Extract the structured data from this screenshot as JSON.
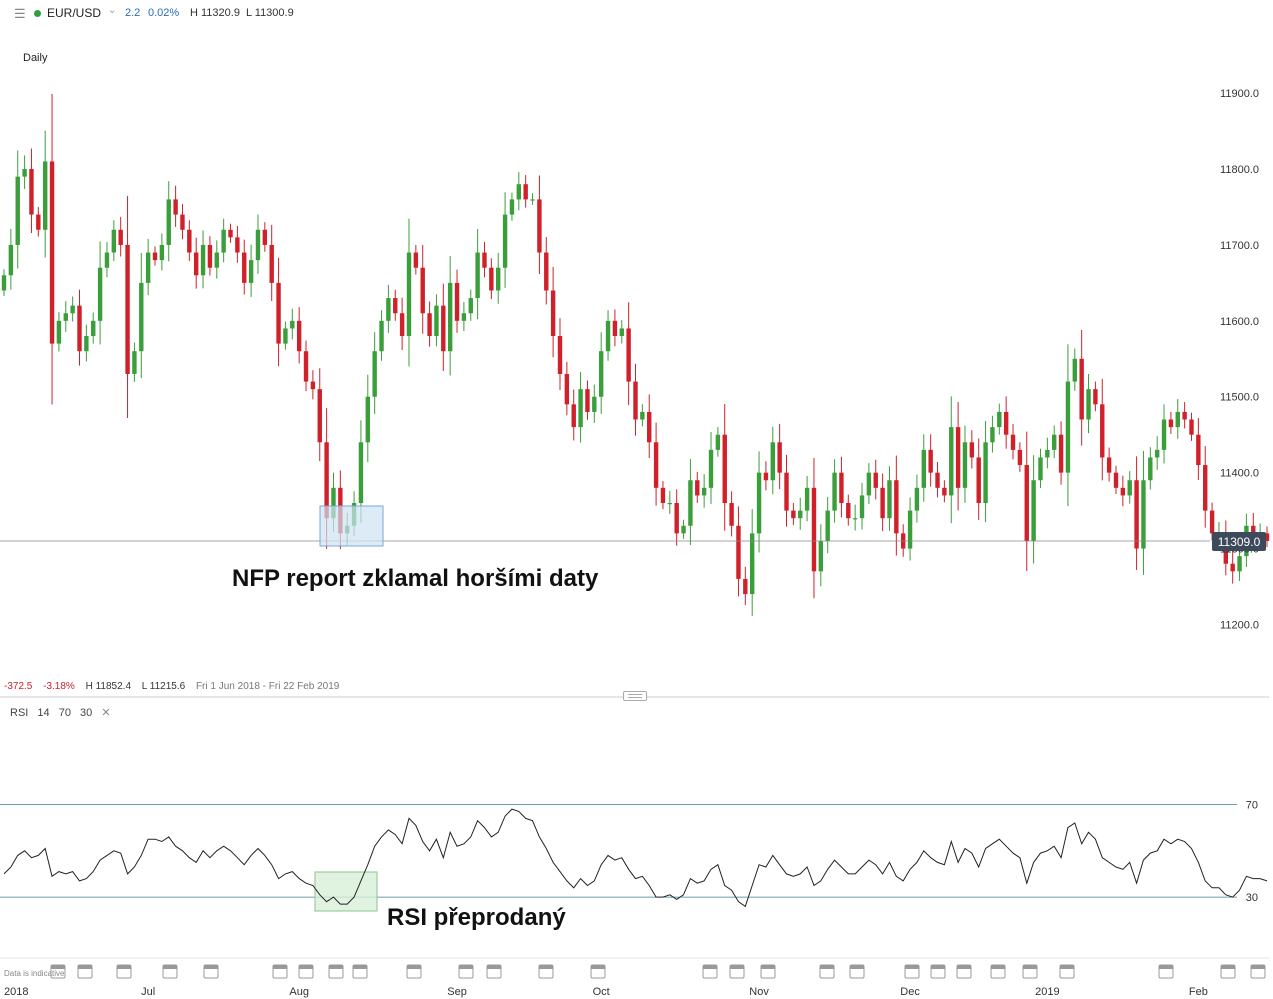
{
  "header": {
    "menu_icon": "hamburger-menu-icon",
    "symbol": "EUR/USD",
    "status_color": "#2e9e3e",
    "change": "2.2",
    "change_pct": "0.02%",
    "high": "H 11320.9",
    "low": "L 11300.9"
  },
  "timeframe": "Daily",
  "summary": {
    "change": "-372.5",
    "change_pct": "-3.18%",
    "high": "H 11852.4",
    "low": "L 11215.6",
    "range": "Fri 1 Jun 2018 - Fri 22 Feb 2019"
  },
  "rsi_header": {
    "name": "RSI",
    "period": "14",
    "upper": "70",
    "lower": "30",
    "close": "✕"
  },
  "disclaimer": "Data is indicative",
  "annotations": {
    "nfp": "NFP report zklamal horšími daty",
    "rsi": "RSI přeprodaný"
  },
  "colors": {
    "up": "#3a9e3a",
    "down": "#d0202a",
    "axis_text": "#333333",
    "rsi_line": "#222222",
    "level_line": "#3a7c8c",
    "last_price_bg": "#3c4a5c"
  },
  "chart_data": [
    {
      "type": "candlestick",
      "title": "EUR/USD Daily",
      "ylim": [
        11140,
        11970
      ],
      "yticks": [
        11200,
        11300,
        11400,
        11500,
        11600,
        11700,
        11800,
        11900
      ],
      "ytick_labels": [
        "11200.0",
        "11300.0",
        "11400.0",
        "11500.0",
        "11600.0",
        "11700.0",
        "11800.0",
        "11900.0"
      ],
      "last_price": 11309.0,
      "last_price_label": "11309.0",
      "x_labels": [
        "2018",
        "Jul",
        "Aug",
        "Sep",
        "Oct",
        "Nov",
        "Dec",
        "2019",
        "Feb"
      ],
      "x_label_index": [
        0,
        21,
        43,
        66,
        87,
        110,
        132,
        152,
        174
      ],
      "closes": [
        11660,
        11700,
        11790,
        11800,
        11740,
        11720,
        11810,
        11570,
        11600,
        11610,
        11620,
        11560,
        11580,
        11600,
        11670,
        11690,
        11720,
        11700,
        11530,
        11560,
        11650,
        11690,
        11680,
        11700,
        11760,
        11740,
        11720,
        11690,
        11660,
        11700,
        11670,
        11690,
        11720,
        11710,
        11690,
        11650,
        11680,
        11720,
        11700,
        11650,
        11570,
        11590,
        11600,
        11560,
        11520,
        11510,
        11440,
        11340,
        11380,
        11320,
        11330,
        11360,
        11440,
        11500,
        11560,
        11600,
        11630,
        11610,
        11580,
        11690,
        11670,
        11610,
        11580,
        11620,
        11560,
        11650,
        11600,
        11610,
        11630,
        11690,
        11670,
        11640,
        11670,
        11740,
        11760,
        11780,
        11760,
        11760,
        11690,
        11640,
        11580,
        11530,
        11490,
        11460,
        11510,
        11480,
        11500,
        11560,
        11600,
        11580,
        11590,
        11520,
        11470,
        11480,
        11440,
        11380,
        11360,
        11360,
        11320,
        11330,
        11390,
        11370,
        11380,
        11430,
        11450,
        11360,
        11330,
        11260,
        11240,
        11320,
        11400,
        11390,
        11440,
        11400,
        11350,
        11340,
        11350,
        11380,
        11270,
        11310,
        11350,
        11400,
        11360,
        11340,
        11340,
        11370,
        11400,
        11380,
        11340,
        11390,
        11320,
        11300,
        11350,
        11380,
        11430,
        11400,
        11380,
        11370,
        11460,
        11380,
        11440,
        11420,
        11360,
        11440,
        11460,
        11480,
        11450,
        11430,
        11410,
        11310,
        11390,
        11420,
        11430,
        11450,
        11400,
        11520,
        11550,
        11470,
        11510,
        11490,
        11420,
        11400,
        11380,
        11370,
        11390,
        11300,
        11390,
        11420,
        11430,
        11470,
        11460,
        11480,
        11470,
        11450,
        11410,
        11350,
        11320,
        11320,
        11280,
        11270,
        11290,
        11330,
        11320,
        11320,
        11310
      ]
    },
    {
      "type": "line",
      "title": "RSI 14",
      "ylim": [
        5,
        100
      ],
      "levels": [
        70,
        30
      ],
      "level_labels": [
        "70",
        "30"
      ],
      "values": [
        40,
        43,
        48,
        50,
        47,
        48,
        51,
        39,
        41,
        40,
        41,
        37,
        38,
        41,
        46,
        48,
        50,
        49,
        40,
        43,
        48,
        55,
        55,
        54,
        56,
        52,
        50,
        47,
        45,
        50,
        47,
        50,
        52,
        50,
        47,
        44,
        48,
        51,
        48,
        44,
        38,
        40,
        41,
        38,
        36,
        35,
        31,
        28,
        30,
        27,
        27,
        30,
        37,
        44,
        52,
        56,
        59,
        57,
        53,
        64,
        61,
        54,
        50,
        55,
        47,
        58,
        52,
        53,
        56,
        63,
        60,
        56,
        58,
        65,
        68,
        67,
        64,
        63,
        56,
        51,
        45,
        41,
        37,
        34,
        38,
        35,
        37,
        44,
        48,
        46,
        47,
        42,
        38,
        39,
        35,
        30,
        30,
        31,
        29,
        31,
        38,
        36,
        37,
        42,
        44,
        35,
        33,
        28,
        26,
        35,
        44,
        43,
        48,
        44,
        40,
        39,
        40,
        43,
        35,
        37,
        42,
        46,
        43,
        40,
        40,
        43,
        46,
        44,
        40,
        45,
        39,
        37,
        42,
        45,
        50,
        47,
        45,
        44,
        54,
        45,
        51,
        49,
        43,
        51,
        53,
        55,
        52,
        49,
        47,
        36,
        45,
        49,
        50,
        52,
        47,
        60,
        62,
        53,
        58,
        55,
        47,
        45,
        43,
        42,
        45,
        36,
        46,
        49,
        50,
        55,
        53,
        55,
        54,
        51,
        45,
        37,
        34,
        34,
        31,
        30,
        33,
        39,
        38,
        38,
        37
      ]
    }
  ]
}
